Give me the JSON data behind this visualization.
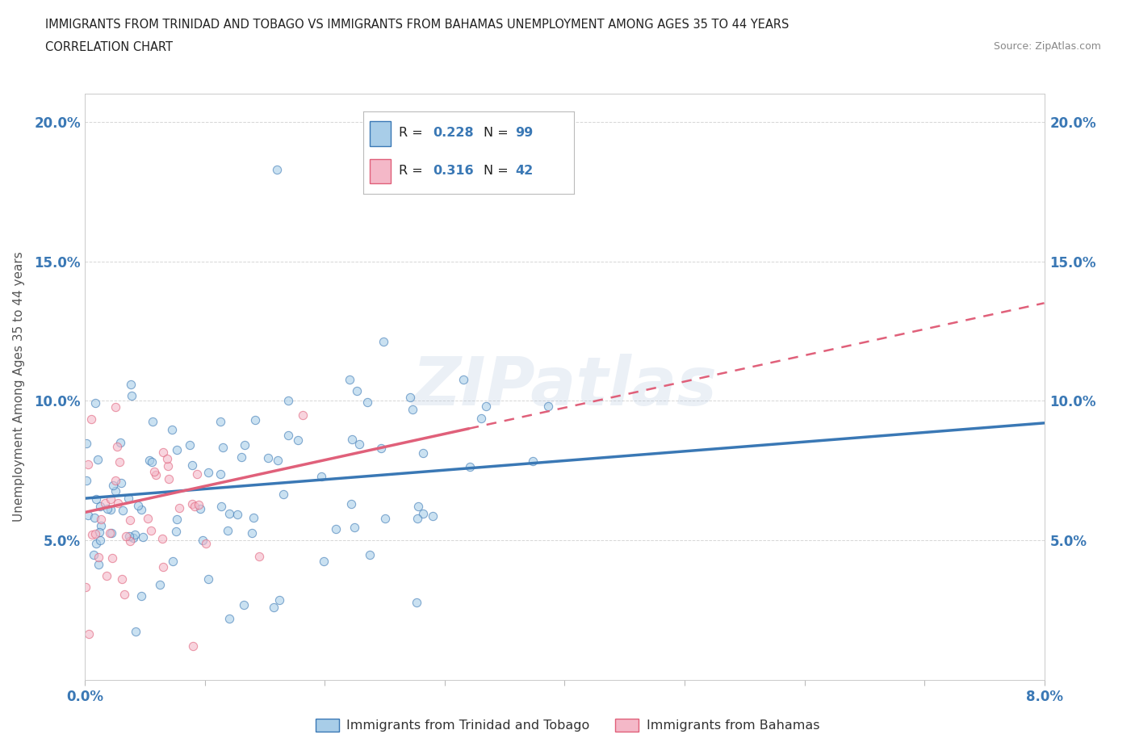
{
  "title_line1": "IMMIGRANTS FROM TRINIDAD AND TOBAGO VS IMMIGRANTS FROM BAHAMAS UNEMPLOYMENT AMONG AGES 35 TO 44 YEARS",
  "title_line2": "CORRELATION CHART",
  "source_text": "Source: ZipAtlas.com",
  "ylabel": "Unemployment Among Ages 35 to 44 years",
  "xlim": [
    0.0,
    0.08
  ],
  "ylim": [
    0.0,
    0.21
  ],
  "xtick_positions": [
    0.0,
    0.01,
    0.02,
    0.03,
    0.04,
    0.05,
    0.06,
    0.07,
    0.08
  ],
  "xtick_labels": [
    "0.0%",
    "",
    "",
    "",
    "",
    "",
    "",
    "",
    "8.0%"
  ],
  "ytick_positions": [
    0.0,
    0.05,
    0.1,
    0.15,
    0.2
  ],
  "ytick_labels": [
    "",
    "5.0%",
    "10.0%",
    "15.0%",
    "20.0%"
  ],
  "color_blue": "#a8cde8",
  "color_pink": "#f4b8c8",
  "trendline_blue": "#3a78b5",
  "trendline_pink": "#e0607a",
  "R_blue": 0.228,
  "N_blue": 99,
  "R_pink": 0.316,
  "N_pink": 42,
  "legend_label_blue": "Immigrants from Trinidad and Tobago",
  "legend_label_pink": "Immigrants from Bahamas",
  "watermark": "ZIPatlas",
  "background_color": "#ffffff",
  "grid_color": "#cccccc",
  "legend_text_color": "#3a78b5",
  "axis_label_color": "#3a78b5"
}
